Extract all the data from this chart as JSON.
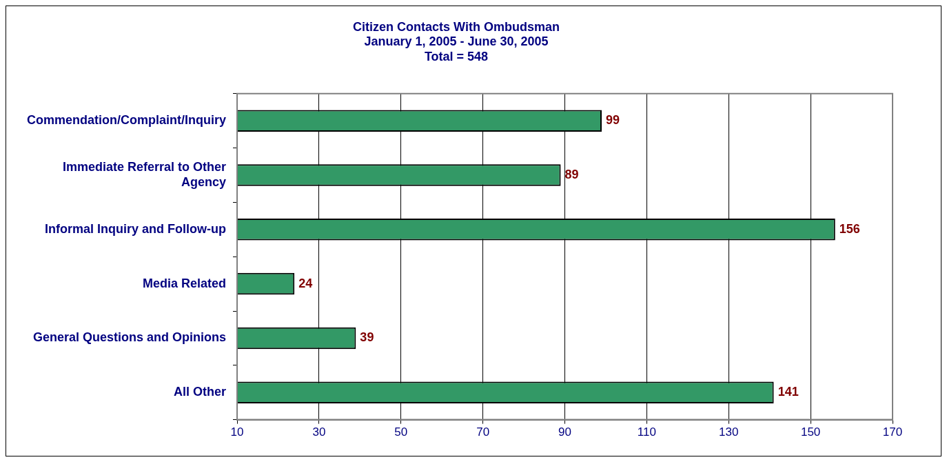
{
  "chart_data": {
    "type": "bar",
    "orientation": "horizontal",
    "title": "Citizen Contacts With Ombudsman",
    "subtitle": "January 1, 2005 - June 30, 2005",
    "annotations": [
      "Total = 548"
    ],
    "categories": [
      "Commendation/Complaint/Inquiry",
      "Immediate Referral to Other Agency",
      "Informal Inquiry and Follow-up",
      "Media Related",
      "General Questions and Opinions",
      "All Other"
    ],
    "values": [
      99,
      89,
      156,
      24,
      39,
      141
    ],
    "color": "#339966",
    "xlim": [
      10,
      170
    ],
    "xticks": [
      10,
      30,
      50,
      70,
      90,
      110,
      130,
      150,
      170
    ],
    "grid": "x",
    "data_labels": true,
    "legend": false
  }
}
